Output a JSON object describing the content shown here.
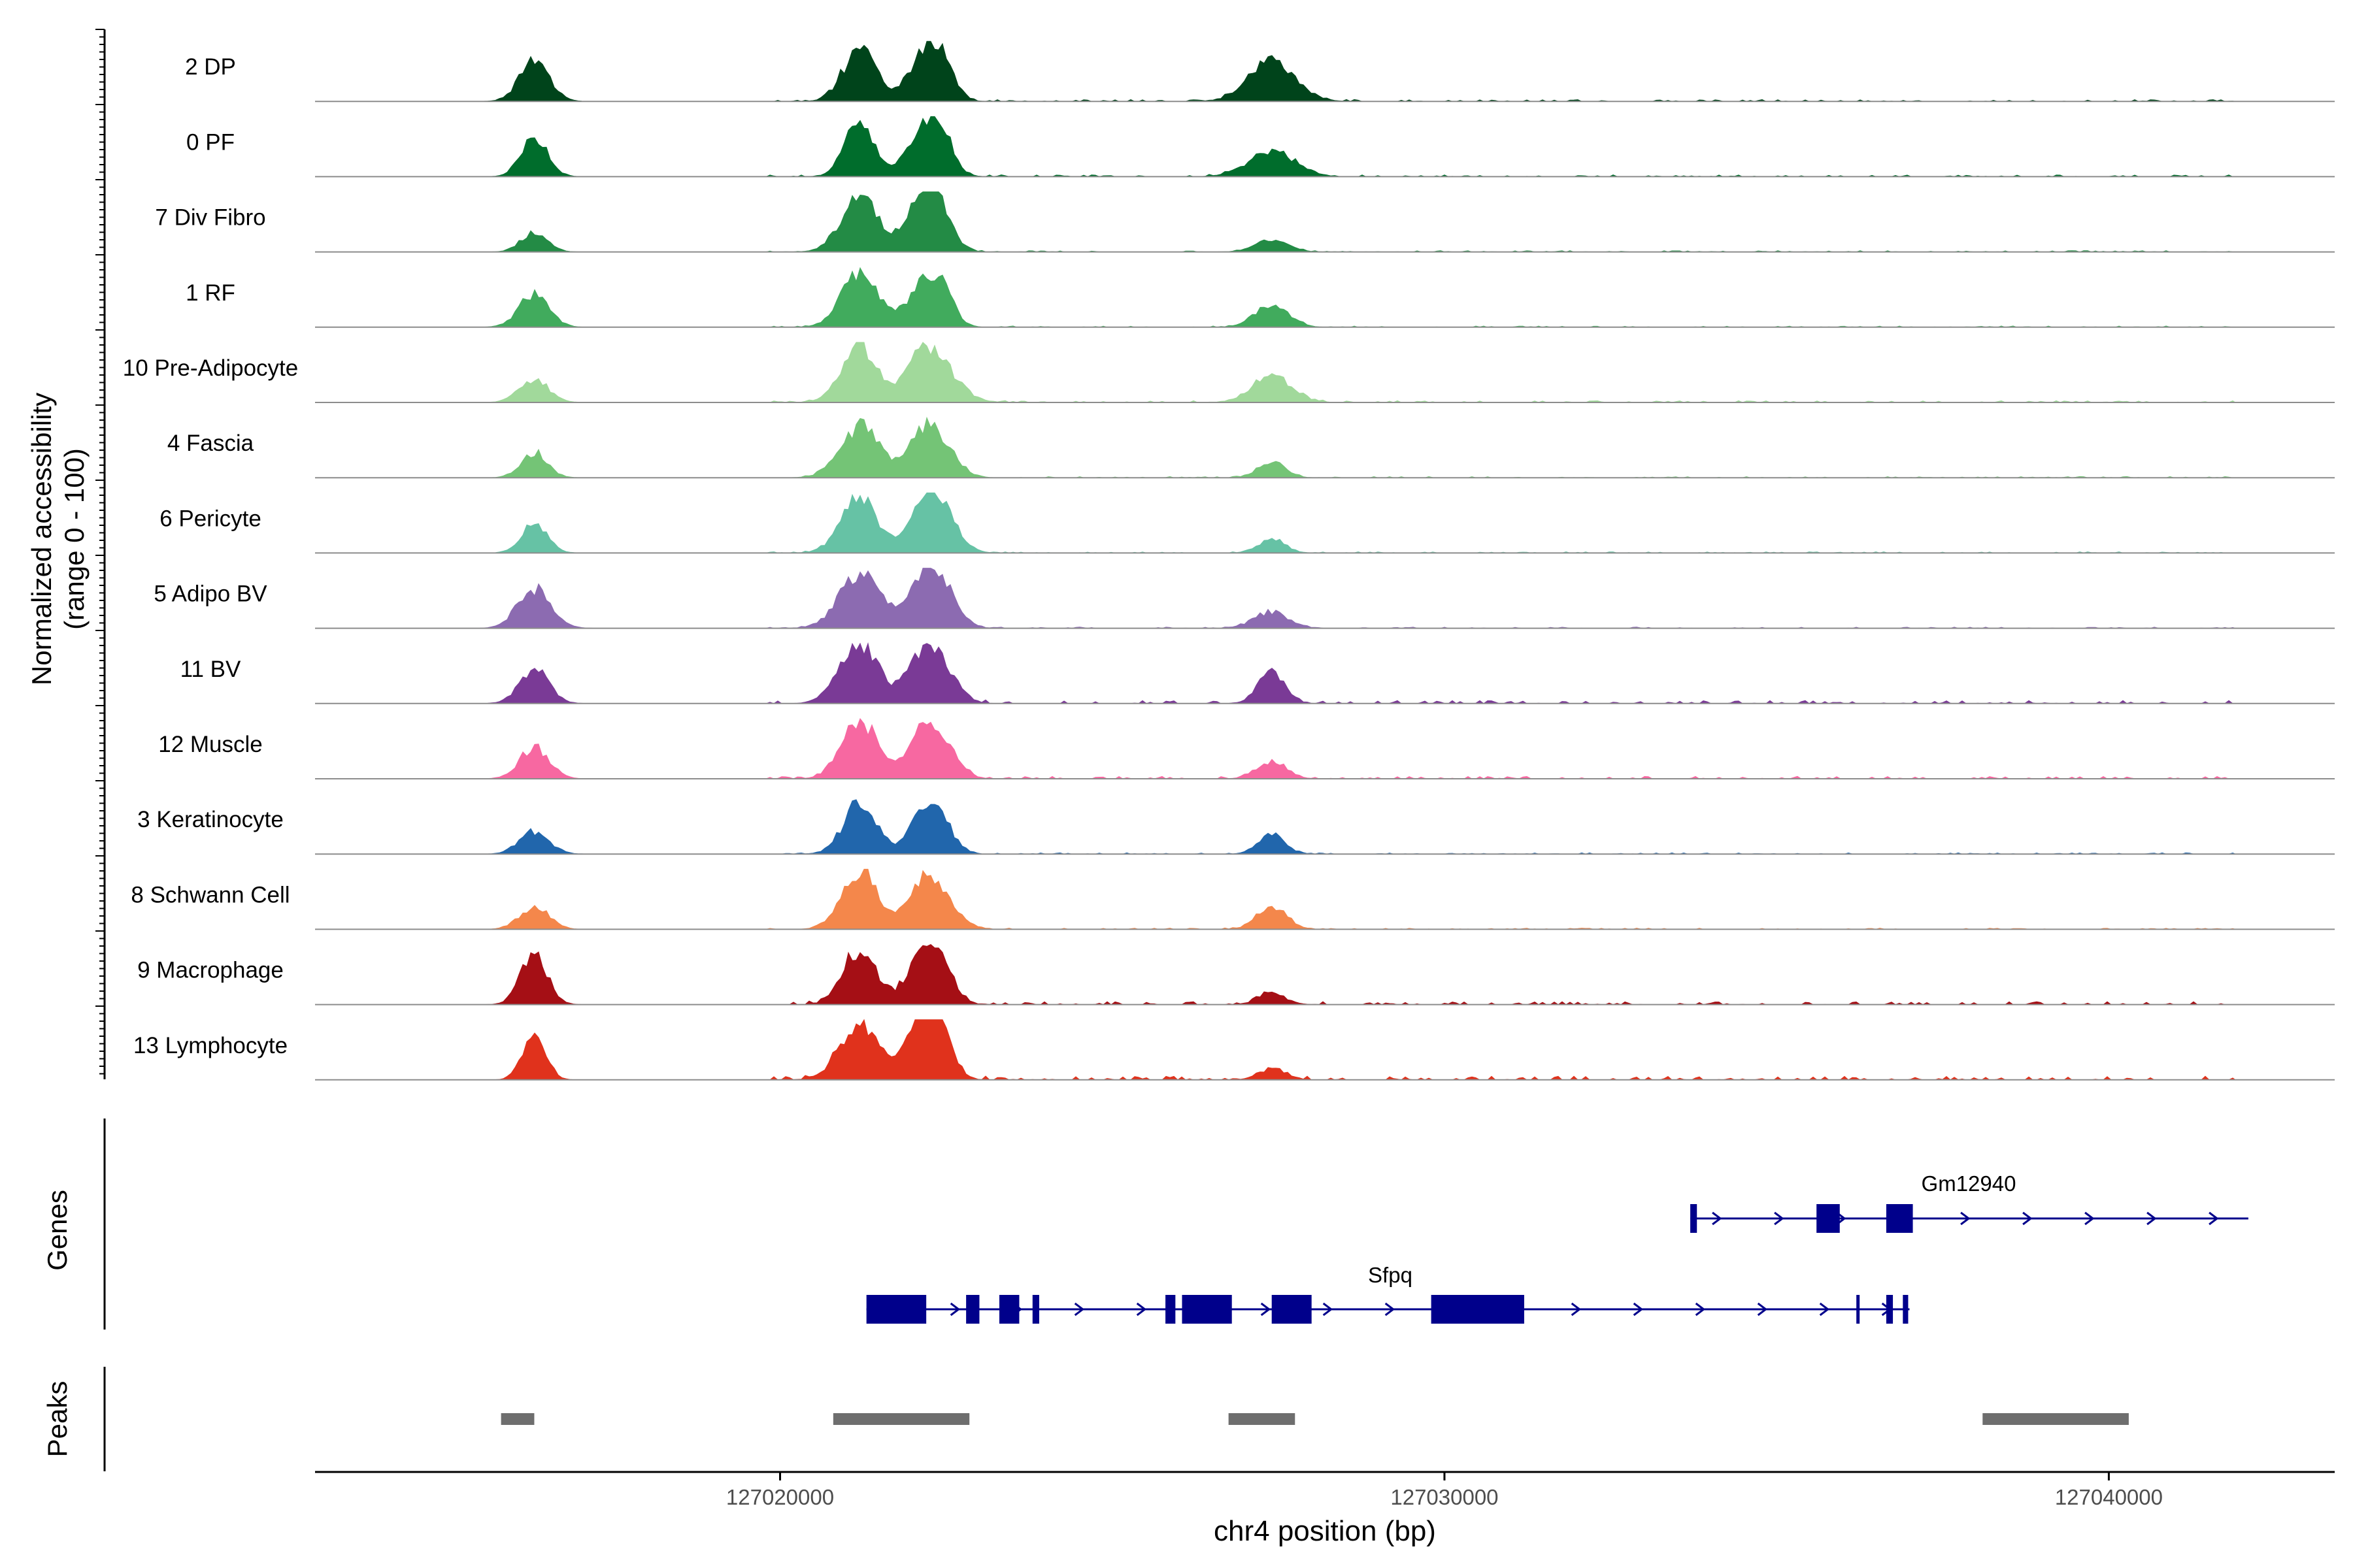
{
  "chart_data": {
    "type": "area",
    "title": "",
    "chromosome": "chr4",
    "xlabel": "chr4 position (bp)",
    "ylabel": "Normalized accessibility\n(range 0 - 100)",
    "xlim": [
      127013000,
      127043400
    ],
    "ylim": [
      0,
      100
    ],
    "x_ticks": [
      127020000,
      127030000,
      127040000
    ],
    "tracks": [
      {
        "name": "2 DP",
        "color": "#00441b",
        "peaks": [
          [
            127016300,
            70,
            9
          ],
          [
            127021200,
            95,
            10
          ],
          [
            127022100,
            60,
            9
          ],
          [
            127022400,
            75,
            8
          ],
          [
            127027400,
            70,
            14
          ]
        ],
        "noise": [
          [
            127019800,
            127042000,
            3
          ]
        ]
      },
      {
        "name": "0 PF",
        "color": "#006d2c",
        "peaks": [
          [
            127016300,
            75,
            8
          ],
          [
            127021200,
            95,
            9
          ],
          [
            127022100,
            65,
            9
          ],
          [
            127022400,
            75,
            8
          ],
          [
            127027400,
            45,
            14
          ]
        ],
        "noise": [
          [
            127019800,
            127042000,
            3
          ]
        ]
      },
      {
        "name": "7 Div Fibro",
        "color": "#238b45",
        "peaks": [
          [
            127016300,
            35,
            8
          ],
          [
            127021200,
            100,
            11
          ],
          [
            127022100,
            85,
            9
          ],
          [
            127022400,
            70,
            8
          ],
          [
            127027400,
            20,
            10
          ]
        ],
        "noise": [
          [
            127019800,
            127042000,
            2
          ]
        ]
      },
      {
        "name": "1 RF",
        "color": "#41ab5d",
        "peaks": [
          [
            127016300,
            60,
            9
          ],
          [
            127021200,
            95,
            11
          ],
          [
            127022100,
            60,
            9
          ],
          [
            127022400,
            65,
            8
          ],
          [
            127027400,
            40,
            10
          ]
        ],
        "noise": [
          [
            127019800,
            127042000,
            2
          ]
        ]
      },
      {
        "name": "10 Pre-Adipocyte",
        "color": "#a1d99b",
        "peaks": [
          [
            127016300,
            40,
            9
          ],
          [
            127021200,
            100,
            11
          ],
          [
            127022100,
            60,
            9
          ],
          [
            127022400,
            60,
            12
          ],
          [
            127027400,
            45,
            12
          ]
        ],
        "noise": [
          [
            127019800,
            127042000,
            3
          ]
        ]
      },
      {
        "name": "4 Fascia",
        "color": "#74c476",
        "peaks": [
          [
            127016300,
            45,
            8
          ],
          [
            127021200,
            90,
            12
          ],
          [
            127022100,
            55,
            9
          ],
          [
            127022400,
            60,
            10
          ],
          [
            127027400,
            30,
            8
          ]
        ],
        "noise": [
          [
            127019800,
            127042000,
            2
          ]
        ]
      },
      {
        "name": "6 Pericyte",
        "color": "#66c2a5",
        "peaks": [
          [
            127016300,
            50,
            8
          ],
          [
            127021200,
            100,
            11
          ],
          [
            127022100,
            60,
            8
          ],
          [
            127022400,
            80,
            10
          ],
          [
            127027400,
            25,
            8
          ]
        ],
        "noise": [
          [
            127019800,
            127042000,
            2
          ]
        ]
      },
      {
        "name": "5 Adipo BV",
        "color": "#8c6bb1",
        "peaks": [
          [
            127016300,
            70,
            10
          ],
          [
            127021200,
            100,
            12
          ],
          [
            127022100,
            65,
            9
          ],
          [
            127022400,
            75,
            10
          ],
          [
            127027400,
            30,
            10
          ]
        ],
        "noise": [
          [
            127019800,
            127042000,
            2
          ]
        ]
      },
      {
        "name": "11 BV",
        "color": "#7a3a96",
        "peaks": [
          [
            127016300,
            60,
            9
          ],
          [
            127021200,
            100,
            12
          ],
          [
            127022100,
            60,
            9
          ],
          [
            127022400,
            65,
            10
          ],
          [
            127027400,
            55,
            8
          ]
        ],
        "noise": [
          [
            127019800,
            127042000,
            5
          ]
        ]
      },
      {
        "name": "12 Muscle",
        "color": "#f768a1",
        "peaks": [
          [
            127016300,
            55,
            9
          ],
          [
            127021200,
            100,
            11
          ],
          [
            127022100,
            60,
            9
          ],
          [
            127022400,
            60,
            10
          ],
          [
            127027400,
            30,
            9
          ]
        ],
        "noise": [
          [
            127019800,
            127042000,
            4
          ]
        ]
      },
      {
        "name": "3 Keratinocyte",
        "color": "#2166ac",
        "peaks": [
          [
            127016300,
            40,
            9
          ],
          [
            127021200,
            90,
            10
          ],
          [
            127022100,
            55,
            8
          ],
          [
            127022400,
            60,
            8
          ],
          [
            127027400,
            35,
            8
          ]
        ],
        "noise": [
          [
            127019800,
            127042000,
            2
          ]
        ]
      },
      {
        "name": "8 Schwann Cell",
        "color": "#f4874b",
        "peaks": [
          [
            127016300,
            40,
            9
          ],
          [
            127021200,
            100,
            11
          ],
          [
            127022100,
            55,
            9
          ],
          [
            127022400,
            60,
            10
          ],
          [
            127027400,
            40,
            9
          ]
        ],
        "noise": [
          [
            127019800,
            127042000,
            2
          ]
        ]
      },
      {
        "name": "9 Macrophage",
        "color": "#a50f15",
        "peaks": [
          [
            127016300,
            90,
            8
          ],
          [
            127021200,
            100,
            10
          ],
          [
            127022100,
            70,
            9
          ],
          [
            127022400,
            80,
            8
          ],
          [
            127027400,
            20,
            8
          ]
        ],
        "noise": [
          [
            127019800,
            127042000,
            5
          ]
        ]
      },
      {
        "name": "13 Lymphocyte",
        "color": "#e0321c",
        "peaks": [
          [
            127016300,
            80,
            7
          ],
          [
            127021200,
            100,
            12
          ],
          [
            127022100,
            100,
            8
          ],
          [
            127022400,
            90,
            8
          ],
          [
            127027400,
            20,
            8
          ]
        ],
        "noise": [
          [
            127019800,
            127042000,
            6
          ]
        ]
      }
    ],
    "genes": [
      {
        "name": "Gm12940",
        "strand": "+",
        "start": 127033700,
        "end": 127042100,
        "exons": [
          [
            127033700,
            127033800
          ],
          [
            127035600,
            127035950
          ],
          [
            127036650,
            127037050
          ]
        ]
      },
      {
        "name": "Sfpq",
        "strand": "+",
        "start": 127021300,
        "end": 127037000,
        "exons": [
          [
            127021300,
            127022200
          ],
          [
            127022800,
            127023000
          ],
          [
            127023300,
            127023600
          ],
          [
            127023800,
            127023900
          ],
          [
            127025800,
            127025950
          ],
          [
            127026050,
            127026800
          ],
          [
            127027400,
            127028000
          ],
          [
            127029800,
            127031200
          ],
          [
            127036200,
            127036220
          ],
          [
            127036650,
            127036750
          ],
          [
            127036900,
            127036980
          ]
        ]
      }
    ],
    "peaks": [
      [
        127015800,
        127016300
      ],
      [
        127020800,
        127022850
      ],
      [
        127026750,
        127027750
      ],
      [
        127038100,
        127040300
      ]
    ],
    "panel_labels": {
      "genes": "Genes",
      "peaks": "Peaks"
    }
  }
}
